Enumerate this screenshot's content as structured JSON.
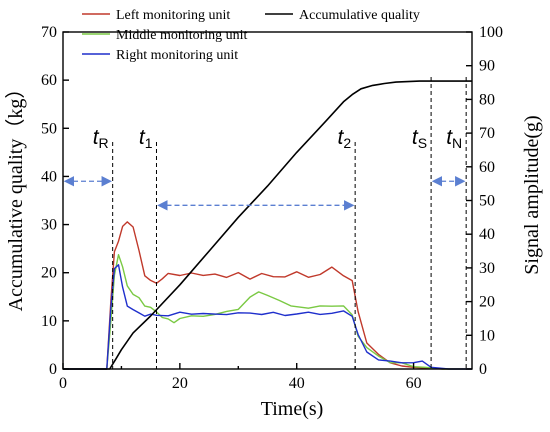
{
  "chart_data": {
    "type": "line",
    "xlabel": "Time(s)",
    "ylabel_left": "Accumulative quality（kg）",
    "ylabel_right": "Signal amplitude(g)",
    "xlim": [
      0,
      70
    ],
    "ylim_left": [
      0,
      70
    ],
    "ylim_right": [
      0,
      100
    ],
    "x_ticks": [
      0,
      20,
      40,
      60
    ],
    "y_left_ticks": [
      0,
      10,
      20,
      30,
      40,
      50,
      60,
      70
    ],
    "y_right_ticks": [
      0,
      10,
      20,
      30,
      40,
      50,
      60,
      70,
      80,
      90,
      100
    ],
    "legend": [
      {
        "name": "Left monitoring unit",
        "color": "#c0392b"
      },
      {
        "name": "Middle monitoring unit",
        "color": "#7ac943"
      },
      {
        "name": "Right monitoring unit",
        "color": "#1f2fcc"
      },
      {
        "name": "Accumulative quality",
        "color": "#000000"
      }
    ],
    "series": [
      {
        "name": "Left monitoring unit",
        "axis": "right",
        "color": "#c0392b",
        "x": [
          0,
          7.5,
          8.2,
          8.8,
          9.5,
          10.2,
          11,
          12,
          13,
          14,
          15,
          16,
          17,
          18,
          20,
          22,
          24,
          26,
          28,
          30,
          32,
          34,
          36,
          38,
          40,
          42,
          44,
          46,
          48,
          49.5,
          50.5,
          52,
          54,
          56,
          58,
          60,
          62,
          65,
          70
        ],
        "y": [
          0,
          0,
          20,
          35,
          38,
          42,
          44,
          42,
          35,
          28,
          26,
          25.5,
          27,
          28,
          28,
          28.5,
          27.5,
          28.5,
          27,
          28.5,
          27,
          28,
          27.5,
          27.5,
          28.5,
          27.5,
          28,
          30,
          28,
          26,
          17,
          8,
          4,
          2,
          1,
          0.5,
          0.3,
          0,
          0
        ]
      },
      {
        "name": "Middle monitoring unit",
        "axis": "right",
        "color": "#7ac943",
        "x": [
          0,
          7.5,
          8.2,
          8.8,
          9.5,
          10.2,
          11,
          12,
          13,
          14,
          15,
          16,
          17,
          18,
          19,
          20,
          22,
          24,
          26,
          28,
          30,
          32,
          33.5,
          35,
          37,
          39,
          42,
          44,
          46,
          48,
          49.5,
          50.5,
          52,
          54,
          56,
          58,
          60,
          62,
          65,
          70
        ],
        "y": [
          0,
          0,
          14,
          28,
          34,
          30,
          25,
          22,
          21,
          19,
          18,
          17,
          15.5,
          14.5,
          14,
          15,
          15.5,
          16,
          16,
          17,
          18,
          21,
          23,
          22,
          20,
          19,
          18,
          18.5,
          19,
          18.5,
          16,
          10,
          6,
          4,
          2,
          1.5,
          1,
          0.5,
          0,
          0
        ]
      },
      {
        "name": "Right monitoring unit",
        "axis": "right",
        "color": "#1f2fcc",
        "x": [
          0,
          7.5,
          8.2,
          8.8,
          9.5,
          10.2,
          11,
          12,
          13,
          14,
          15,
          16,
          18,
          20,
          22,
          24,
          26,
          28,
          30,
          32,
          34,
          36,
          38,
          40,
          42,
          44,
          46,
          48,
          49.5,
          50.5,
          52,
          54,
          56,
          58,
          60,
          61.5,
          63,
          66,
          70
        ],
        "y": [
          0,
          0,
          18,
          30,
          31,
          24,
          19,
          17.5,
          16.5,
          16,
          16,
          16,
          16,
          16.5,
          16.5,
          16.5,
          16,
          16.5,
          16.5,
          16.5,
          16.5,
          16.5,
          16,
          16.5,
          16.5,
          16.5,
          16.5,
          17,
          16,
          10,
          5,
          3,
          2,
          2,
          2,
          2,
          0.5,
          0,
          0
        ]
      },
      {
        "name": "Accumulative quality",
        "axis": "left",
        "color": "#000000",
        "x": [
          0,
          8,
          9,
          10,
          12,
          15,
          20,
          25,
          30,
          35,
          40,
          45,
          48,
          49.5,
          51,
          53,
          55,
          57,
          59,
          61,
          63,
          66,
          70
        ],
        "y": [
          0,
          0,
          2,
          4,
          7.5,
          11,
          17.5,
          24.5,
          31.5,
          38,
          45,
          51.5,
          55.5,
          57,
          58.2,
          58.9,
          59.3,
          59.6,
          59.7,
          59.8,
          59.8,
          59.8,
          59.8
        ]
      }
    ],
    "markers": [
      {
        "letter": "t",
        "sub": "R",
        "x": 8.5
      },
      {
        "letter": "t",
        "sub": "1",
        "x": 16
      },
      {
        "letter": "t",
        "sub": "2",
        "x": 50
      },
      {
        "letter": "t",
        "sub": "S",
        "x": 63
      },
      {
        "letter": "t",
        "sub": "N",
        "x": 69
      }
    ],
    "arrows": [
      {
        "from": 0,
        "to": 8.5,
        "y_left": 39
      },
      {
        "from": 16,
        "to": 50,
        "y_left": 34
      },
      {
        "from": 63,
        "to": 69,
        "y_left": 39
      }
    ]
  }
}
